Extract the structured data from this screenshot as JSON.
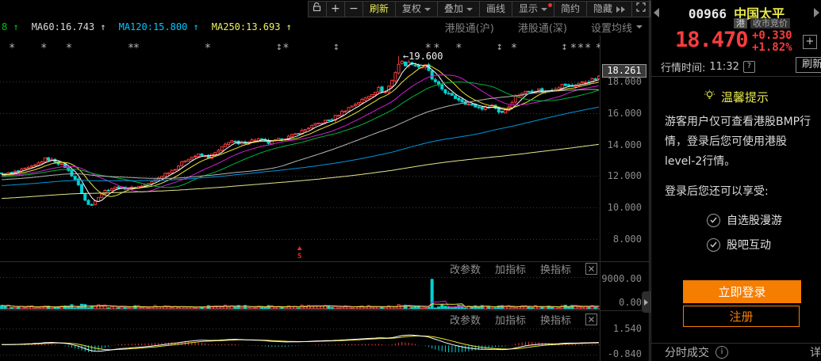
{
  "toolbar": {
    "zoom_in": "+",
    "zoom_out": "−",
    "buttons": [
      {
        "id": "refresh",
        "label": "刷新",
        "accent": true
      },
      {
        "id": "adjust",
        "label": "复权",
        "dropdown": true
      },
      {
        "id": "overlay",
        "label": "叠加",
        "dropdown": true
      },
      {
        "id": "drawline",
        "label": "画线"
      },
      {
        "id": "display",
        "label": "显示",
        "dropdown": true,
        "dot": true
      },
      {
        "id": "simple",
        "label": "简约"
      },
      {
        "id": "hide",
        "label": "隐藏",
        "chevrons": true
      }
    ]
  },
  "ma_bar": {
    "fragment": "8",
    "fragment_color": "#00c800",
    "items": [
      {
        "label": "MA60:16.743",
        "color": "#dcdcdc"
      },
      {
        "label": "MA120:15.800",
        "color": "#00c8ff"
      },
      {
        "label": "MA250:13.693",
        "color": "#f0f064"
      }
    ],
    "links": [
      "港股通(沪)",
      "港股通(深)"
    ],
    "ma_setting": "设置均线"
  },
  "pane_tools": {
    "items": [
      "改参数",
      "加指标",
      "换指标"
    ]
  },
  "chart_data": {
    "type": "candlestick",
    "symbol": "00966 中国太平",
    "n_candles": 180,
    "y_axis": {
      "ticks": [
        {
          "label": "18.000",
          "price": 18
        },
        {
          "label": "16.000",
          "price": 16
        },
        {
          "label": "14.000",
          "price": 14
        },
        {
          "label": "12.000",
          "price": 12
        },
        {
          "label": "10.000",
          "price": 10
        },
        {
          "label": "8.000",
          "price": 8
        }
      ],
      "current": {
        "label": "18.261",
        "price": 18.261
      }
    },
    "annotation": {
      "text": "←19.600",
      "t": 0.667,
      "price": 19.6
    },
    "anchors": [
      [
        0.003,
        12.1
      ],
      [
        0.026,
        12.3
      ],
      [
        0.053,
        12.6
      ],
      [
        0.073,
        13.1
      ],
      [
        0.086,
        13.0
      ],
      [
        0.106,
        12.6
      ],
      [
        0.125,
        11.7
      ],
      [
        0.139,
        10.5
      ],
      [
        0.148,
        10.05
      ],
      [
        0.159,
        10.6
      ],
      [
        0.174,
        11.1
      ],
      [
        0.192,
        11.3
      ],
      [
        0.211,
        11.2
      ],
      [
        0.231,
        11.35
      ],
      [
        0.251,
        11.6
      ],
      [
        0.271,
        12.1
      ],
      [
        0.291,
        12.5
      ],
      [
        0.31,
        13.1
      ],
      [
        0.33,
        13.35
      ],
      [
        0.346,
        13.2
      ],
      [
        0.363,
        13.6
      ],
      [
        0.383,
        14.3
      ],
      [
        0.396,
        14.0
      ],
      [
        0.412,
        14.2
      ],
      [
        0.429,
        14.35
      ],
      [
        0.447,
        14.1
      ],
      [
        0.462,
        14.3
      ],
      [
        0.478,
        14.45
      ],
      [
        0.495,
        14.7
      ],
      [
        0.515,
        15.1
      ],
      [
        0.535,
        15.4
      ],
      [
        0.552,
        15.6
      ],
      [
        0.571,
        16.1
      ],
      [
        0.588,
        16.5
      ],
      [
        0.605,
        16.85
      ],
      [
        0.618,
        17.2
      ],
      [
        0.631,
        17.55
      ],
      [
        0.642,
        17.3
      ],
      [
        0.654,
        18.1
      ],
      [
        0.661,
        18.8
      ],
      [
        0.667,
        19.3
      ],
      [
        0.676,
        19.1
      ],
      [
        0.687,
        19.2
      ],
      [
        0.7,
        18.9
      ],
      [
        0.711,
        19.0
      ],
      [
        0.72,
        18.2
      ],
      [
        0.729,
        17.8
      ],
      [
        0.74,
        17.45
      ],
      [
        0.75,
        17.1
      ],
      [
        0.764,
        16.9
      ],
      [
        0.779,
        16.6
      ],
      [
        0.795,
        16.4
      ],
      [
        0.808,
        16.3
      ],
      [
        0.822,
        16.5
      ],
      [
        0.835,
        16.0
      ],
      [
        0.848,
        16.35
      ],
      [
        0.859,
        17.0
      ],
      [
        0.872,
        17.3
      ],
      [
        0.885,
        17.4
      ],
      [
        0.898,
        17.5
      ],
      [
        0.911,
        17.35
      ],
      [
        0.925,
        17.55
      ],
      [
        0.94,
        17.8
      ],
      [
        0.954,
        17.7
      ],
      [
        0.967,
        17.9
      ],
      [
        0.98,
        18.0
      ],
      [
        0.993,
        18.15
      ],
      [
        1.0,
        18.26
      ]
    ],
    "ma_periods": [
      {
        "period": 5,
        "color": "#ffffff"
      },
      {
        "period": 10,
        "color": "#e8e832"
      },
      {
        "period": 20,
        "color": "#d21ed2"
      },
      {
        "period": 30,
        "color": "#00b43c"
      },
      {
        "period": 60,
        "color": "#b4b4b4"
      },
      {
        "period": 120,
        "color": "#0096dc"
      },
      {
        "period": 250,
        "color": "#e6e68c"
      }
    ],
    "colors": {
      "up": "#ee3b3b",
      "down": "#00d2d2",
      "grid": "#3c3c3c",
      "axis_text": "#8a8a8a",
      "marker": "#b4b4b4",
      "annotation": "#f0f0f0"
    },
    "volume_pane": {
      "max_label": "9000.00",
      "min_label": "0.00",
      "max_value": 9000,
      "spike": {
        "t": 0.72,
        "value": 8800
      },
      "ma_colors": [
        "#d21ed2",
        "#e8e832"
      ]
    },
    "macd_pane": {
      "max_label": "1.540",
      "min_label": "-0.840",
      "range": [
        -0.84,
        1.54
      ],
      "dif_color": "#ffffff",
      "dea_color": "#e8e832"
    },
    "event_markers": {
      "star_glyph": "*",
      "arrow_glyph": "↕",
      "star": [
        0.02,
        0.073,
        0.115,
        0.218,
        0.227,
        0.346,
        0.476,
        0.713,
        0.727,
        0.764,
        0.856,
        0.955,
        0.967,
        0.979,
        0.997
      ],
      "arrow": [
        0.465,
        0.56,
        0.832,
        0.94
      ]
    },
    "bottom_marker": {
      "t": 0.499,
      "label": "S",
      "color": "#e03030"
    }
  },
  "quote_panel": {
    "code": "00966",
    "name": "中国太平",
    "market_badge": "港",
    "session_badge": "收市竞价",
    "price": "18.470",
    "change": "+0.330",
    "change_pct": "+1.82%",
    "time_label": "行情时间:",
    "time_value": "11:32",
    "help_glyph": "?",
    "info_glyph": "i",
    "refresh_label": "刷新",
    "tip_title": "温馨提示",
    "tip_body": "游客用户仅可查看港股BMP行情，登录后您可使用港股level-2行情。",
    "tip_sub": "登录后您还可以享受:",
    "perks": [
      "自选股漫游",
      "股吧互动"
    ],
    "login_label": "立即登录",
    "register_label": "注册",
    "bottom_left": "分时成交",
    "bottom_right": "详",
    "colors": {
      "up": "#fa3c3c",
      "accent_orange": "#f57d00",
      "name_yellow": "#e8e84a"
    }
  }
}
